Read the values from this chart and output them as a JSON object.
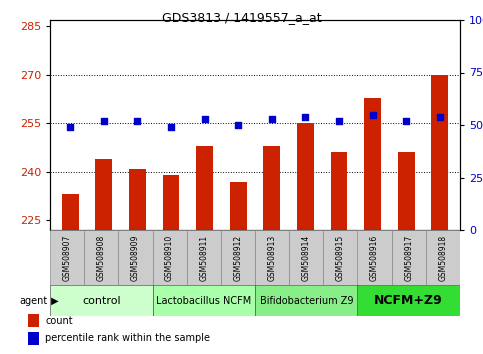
{
  "title": "GDS3813 / 1419557_a_at",
  "samples": [
    "GSM508907",
    "GSM508908",
    "GSM508909",
    "GSM508910",
    "GSM508911",
    "GSM508912",
    "GSM508913",
    "GSM508914",
    "GSM508915",
    "GSM508916",
    "GSM508917",
    "GSM508918"
  ],
  "counts": [
    233,
    244,
    241,
    239,
    248,
    237,
    248,
    255,
    246,
    263,
    246,
    270
  ],
  "percentiles": [
    49,
    52,
    52,
    49,
    53,
    50,
    53,
    54,
    52,
    55,
    52,
    54
  ],
  "ylim_left": [
    222,
    287
  ],
  "ylim_right": [
    0,
    100
  ],
  "yticks_left": [
    225,
    240,
    255,
    270,
    285
  ],
  "yticks_right": [
    0,
    25,
    50,
    75,
    100
  ],
  "bar_color": "#cc2200",
  "dot_color": "#0000cc",
  "bar_width": 0.5,
  "groups": [
    {
      "label": "control",
      "start": 0,
      "end": 2,
      "color": "#ccffcc",
      "fontsize": 8,
      "fontweight": "normal"
    },
    {
      "label": "Lactobacillus NCFM",
      "start": 3,
      "end": 5,
      "color": "#aaffaa",
      "fontsize": 7,
      "fontweight": "normal"
    },
    {
      "label": "Bifidobacterium Z9",
      "start": 6,
      "end": 8,
      "color": "#88ee88",
      "fontsize": 7,
      "fontweight": "normal"
    },
    {
      "label": "NCFM+Z9",
      "start": 9,
      "end": 11,
      "color": "#33dd33",
      "fontsize": 9,
      "fontweight": "bold"
    }
  ],
  "sample_box_color": "#cccccc",
  "xlabel_color": "#cc2200",
  "ylabel_right_color": "#0000cc",
  "grid_color": "#000000",
  "legend_items": [
    {
      "label": "count",
      "color": "#cc2200",
      "marker": "s"
    },
    {
      "label": "percentile rank within the sample",
      "color": "#0000cc",
      "marker": "s"
    }
  ],
  "hlines": [
    255,
    240,
    270
  ],
  "agent_label": "agent"
}
